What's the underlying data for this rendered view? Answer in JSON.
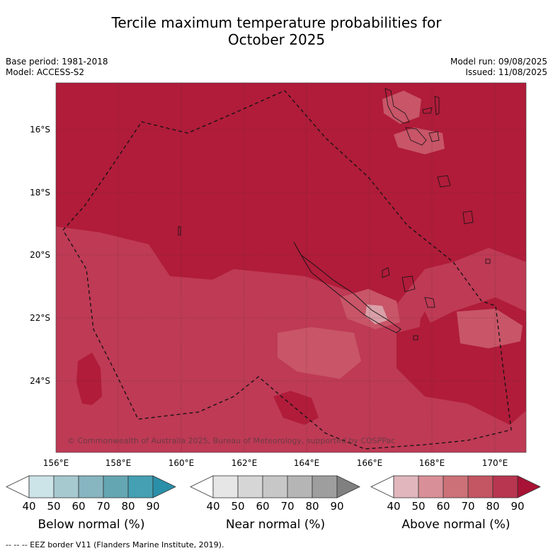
{
  "header": {
    "title_line1": "Tercile maximum temperature probabilities for",
    "title_line2": "October 2025",
    "base_period": "Base period: 1981-2018",
    "model": "Model: ACCESS-S2",
    "model_run": "Model run: 09/08/2025",
    "issued": "Issued: 11/08/2025"
  },
  "map": {
    "lat_labels": [
      "16°S",
      "18°S",
      "20°S",
      "22°S",
      "24°S"
    ],
    "lon_labels": [
      "156°E",
      "158°E",
      "160°E",
      "162°E",
      "164°E",
      "166°E",
      "168°E",
      "170°E"
    ],
    "copyright": "© Commonwealth of Australia 2025, Bureau of Meteorology, supported by COSPPac",
    "colors": {
      "above_80": "#b01c3a",
      "above_70": "#be3a55",
      "above_60": "#c85568",
      "above_50": "#d9a0a8"
    }
  },
  "legends": [
    {
      "name": "below",
      "title": "Below normal (%)",
      "ticks": [
        "40",
        "50",
        "60",
        "70",
        "80",
        "90"
      ],
      "colors": [
        "#ffffff",
        "#cce3e8",
        "#a6c9d0",
        "#87b5c0",
        "#65a6b3",
        "#44a0b2",
        "#2a8fa8"
      ]
    },
    {
      "name": "near",
      "title": "Near normal (%)",
      "ticks": [
        "40",
        "50",
        "60",
        "70",
        "80",
        "90"
      ],
      "colors": [
        "#ffffff",
        "#e6e6e6",
        "#d6d6d6",
        "#c7c7c7",
        "#b5b5b5",
        "#9e9e9e",
        "#808080"
      ]
    },
    {
      "name": "above",
      "title": "Above normal (%)",
      "ticks": [
        "40",
        "50",
        "60",
        "70",
        "80",
        "90"
      ],
      "colors": [
        "#ffffff",
        "#e1b6bd",
        "#d98f97",
        "#cd7179",
        "#c45562",
        "#b83650",
        "#a81234"
      ]
    }
  ],
  "footnote": "--  --  -- EEZ border V11 (Flanders Marine Institute, 2019)."
}
